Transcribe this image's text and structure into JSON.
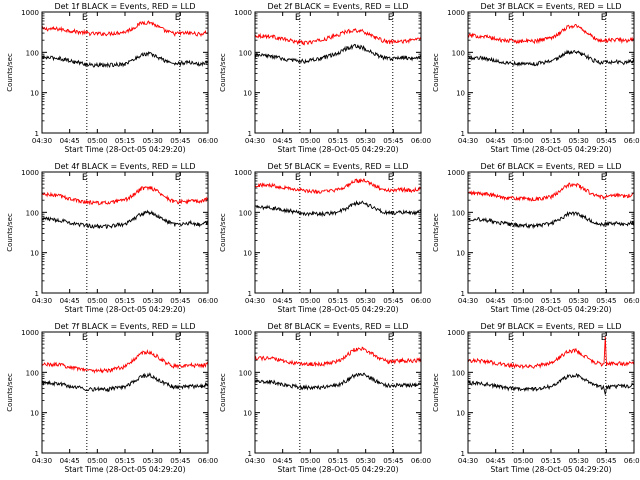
{
  "figure": {
    "background": "#ffffff",
    "axis_color": "#000000"
  },
  "chart_data": [
    {
      "type": "line",
      "title": "Det 1f BLACK = Events, RED = LLD",
      "xlabel": "Start Time (28-Oct-05 04:29:20)",
      "ylabel": "Counts/sec",
      "x_tick_labels": [
        "04:30",
        "04:45",
        "05:00",
        "05:15",
        "05:30",
        "05:45",
        "06:00"
      ],
      "y_tick_labels": [
        "1",
        "10",
        "100",
        "1000"
      ],
      "xlim": [
        0,
        100
      ],
      "ylim": [
        1,
        1000
      ],
      "y_scale": "log",
      "marker_lines_x": [
        27,
        83
      ],
      "annotation": "E",
      "series": [
        {
          "color": "#ff0000",
          "x": [
            0,
            10,
            20,
            30,
            40,
            50,
            55,
            60,
            65,
            70,
            75,
            80,
            85,
            90,
            95,
            100
          ],
          "values": [
            380,
            380,
            330,
            290,
            290,
            320,
            400,
            540,
            560,
            430,
            330,
            290,
            300,
            300,
            280,
            320
          ]
        },
        {
          "color": "#000000",
          "x": [
            0,
            10,
            20,
            30,
            40,
            50,
            55,
            60,
            65,
            70,
            75,
            80,
            85,
            90,
            95,
            100
          ],
          "values": [
            75,
            72,
            58,
            48,
            48,
            52,
            65,
            88,
            92,
            75,
            60,
            52,
            55,
            56,
            50,
            58
          ]
        }
      ]
    },
    {
      "type": "line",
      "title": "Det 2f BLACK = Events, RED = LLD",
      "xlabel": "Start Time (28-Oct-05 04:29:20)",
      "ylabel": "Counts/sec",
      "x_tick_labels": [
        "04:30",
        "04:45",
        "05:00",
        "05:15",
        "05:30",
        "05:45",
        "06:00"
      ],
      "y_tick_labels": [
        "1",
        "10",
        "100",
        "1000"
      ],
      "xlim": [
        0,
        100
      ],
      "ylim": [
        1,
        1000
      ],
      "y_scale": "log",
      "marker_lines_x": [
        27,
        83
      ],
      "annotation": "E",
      "series": [
        {
          "color": "#ff0000",
          "x": [
            0,
            10,
            20,
            30,
            40,
            50,
            55,
            60,
            65,
            70,
            75,
            80,
            85,
            90,
            95,
            100
          ],
          "values": [
            260,
            250,
            200,
            170,
            200,
            270,
            330,
            360,
            330,
            270,
            210,
            180,
            180,
            190,
            200,
            230
          ]
        },
        {
          "color": "#000000",
          "x": [
            0,
            10,
            20,
            30,
            40,
            50,
            55,
            60,
            65,
            70,
            75,
            80,
            85,
            90,
            95,
            100
          ],
          "values": [
            85,
            80,
            65,
            60,
            70,
            95,
            125,
            145,
            130,
            100,
            80,
            70,
            72,
            75,
            72,
            80
          ]
        }
      ]
    },
    {
      "type": "line",
      "title": "Det 3f BLACK = Events, RED = LLD",
      "xlabel": "Start Time (28-Oct-05 04:29:20)",
      "ylabel": "Counts/sec",
      "x_tick_labels": [
        "04:30",
        "04:45",
        "05:00",
        "05:15",
        "05:30",
        "05:45",
        "06:00"
      ],
      "y_tick_labels": [
        "1",
        "10",
        "100",
        "1000"
      ],
      "xlim": [
        0,
        100
      ],
      "ylim": [
        1,
        1000
      ],
      "y_scale": "log",
      "marker_lines_x": [
        27,
        83
      ],
      "annotation": "E",
      "series": [
        {
          "color": "#ff0000",
          "x": [
            0,
            10,
            20,
            30,
            40,
            50,
            55,
            60,
            65,
            70,
            75,
            80,
            85,
            90,
            95,
            100
          ],
          "values": [
            260,
            250,
            200,
            190,
            190,
            230,
            300,
            430,
            460,
            350,
            240,
            190,
            200,
            210,
            190,
            220
          ]
        },
        {
          "color": "#000000",
          "x": [
            0,
            10,
            20,
            30,
            40,
            50,
            55,
            60,
            65,
            70,
            75,
            80,
            85,
            90,
            95,
            100
          ],
          "values": [
            75,
            72,
            58,
            52,
            52,
            60,
            75,
            100,
            105,
            85,
            65,
            55,
            57,
            58,
            55,
            62
          ]
        }
      ]
    },
    {
      "type": "line",
      "title": "Det 4f BLACK = Events, RED = LLD",
      "xlabel": "Start Time (28-Oct-05 04:29:20)",
      "ylabel": "Counts/sec",
      "x_tick_labels": [
        "04:30",
        "04:45",
        "05:00",
        "05:15",
        "05:30",
        "05:45",
        "06:00"
      ],
      "y_tick_labels": [
        "1",
        "10",
        "100",
        "1000"
      ],
      "xlim": [
        0,
        100
      ],
      "ylim": [
        1,
        1000
      ],
      "y_scale": "log",
      "marker_lines_x": [
        27,
        83
      ],
      "annotation": "E",
      "series": [
        {
          "color": "#ff0000",
          "x": [
            0,
            10,
            20,
            30,
            40,
            50,
            55,
            60,
            65,
            70,
            75,
            80,
            85,
            90,
            95,
            100
          ],
          "values": [
            280,
            260,
            200,
            175,
            170,
            200,
            270,
            390,
            420,
            330,
            230,
            180,
            185,
            190,
            185,
            210
          ]
        },
        {
          "color": "#000000",
          "x": [
            0,
            10,
            20,
            30,
            40,
            50,
            55,
            60,
            65,
            70,
            75,
            80,
            85,
            90,
            95,
            100
          ],
          "values": [
            70,
            65,
            52,
            45,
            45,
            52,
            68,
            95,
            100,
            78,
            60,
            50,
            52,
            55,
            50,
            56
          ]
        }
      ]
    },
    {
      "type": "line",
      "title": "Det 5f BLACK = Events, RED = LLD",
      "xlabel": "Start Time (28-Oct-05 04:29:20)",
      "ylabel": "Counts/sec",
      "x_tick_labels": [
        "04:30",
        "04:45",
        "05:00",
        "05:15",
        "05:30",
        "05:45",
        "06:00"
      ],
      "y_tick_labels": [
        "1",
        "10",
        "100",
        "1000"
      ],
      "xlim": [
        0,
        100
      ],
      "ylim": [
        1,
        1000
      ],
      "y_scale": "log",
      "marker_lines_x": [
        27,
        83
      ],
      "annotation": "E",
      "series": [
        {
          "color": "#ff0000",
          "x": [
            0,
            10,
            20,
            30,
            40,
            50,
            55,
            60,
            65,
            70,
            75,
            80,
            85,
            90,
            95,
            100
          ],
          "values": [
            470,
            470,
            400,
            340,
            320,
            360,
            450,
            590,
            620,
            500,
            400,
            350,
            360,
            370,
            350,
            390
          ]
        },
        {
          "color": "#000000",
          "x": [
            0,
            10,
            20,
            30,
            40,
            50,
            55,
            60,
            65,
            70,
            75,
            80,
            85,
            90,
            95,
            100
          ],
          "values": [
            135,
            130,
            110,
            95,
            90,
            100,
            125,
            165,
            175,
            140,
            110,
            95,
            98,
            100,
            95,
            105
          ]
        }
      ]
    },
    {
      "type": "line",
      "title": "Det 6f BLACK = Events, RED = LLD",
      "xlabel": "Start Time (28-Oct-05 04:29:20)",
      "ylabel": "Counts/sec",
      "x_tick_labels": [
        "04:30",
        "04:45",
        "05:00",
        "05:15",
        "05:30",
        "05:45",
        "06:00"
      ],
      "y_tick_labels": [
        "1",
        "10",
        "100",
        "1000"
      ],
      "xlim": [
        0,
        100
      ],
      "ylim": [
        1,
        1000
      ],
      "y_scale": "log",
      "marker_lines_x": [
        27,
        83
      ],
      "annotation": "E",
      "series": [
        {
          "color": "#ff0000",
          "x": [
            0,
            10,
            20,
            30,
            40,
            50,
            55,
            60,
            65,
            70,
            75,
            80,
            85,
            90,
            95,
            100
          ],
          "values": [
            300,
            290,
            240,
            220,
            210,
            240,
            320,
            480,
            500,
            380,
            280,
            240,
            250,
            260,
            250,
            280
          ]
        },
        {
          "color": "#000000",
          "x": [
            0,
            10,
            20,
            30,
            40,
            50,
            55,
            60,
            65,
            70,
            75,
            80,
            85,
            90,
            95,
            100
          ],
          "values": [
            70,
            66,
            54,
            48,
            46,
            52,
            66,
            90,
            95,
            75,
            58,
            50,
            52,
            54,
            50,
            56
          ]
        }
      ]
    },
    {
      "type": "line",
      "title": "Det 7f BLACK = Events, RED = LLD",
      "xlabel": "Start Time (28-Oct-05 04:29:20)",
      "ylabel": "Counts/sec",
      "x_tick_labels": [
        "04:30",
        "04:45",
        "05:00",
        "05:15",
        "05:30",
        "05:45",
        "06:00"
      ],
      "y_tick_labels": [
        "1",
        "10",
        "100",
        "1000"
      ],
      "xlim": [
        0,
        100
      ],
      "ylim": [
        1,
        1000
      ],
      "y_scale": "log",
      "marker_lines_x": [
        27,
        83
      ],
      "annotation": "E",
      "series": [
        {
          "color": "#ff0000",
          "x": [
            0,
            10,
            20,
            30,
            40,
            50,
            55,
            60,
            65,
            70,
            75,
            80,
            85,
            90,
            95,
            100
          ],
          "values": [
            160,
            155,
            130,
            110,
            110,
            140,
            200,
            300,
            320,
            240,
            170,
            140,
            140,
            150,
            145,
            160
          ]
        },
        {
          "color": "#000000",
          "x": [
            0,
            10,
            20,
            30,
            40,
            50,
            55,
            60,
            65,
            70,
            75,
            80,
            85,
            90,
            95,
            100
          ],
          "values": [
            55,
            52,
            43,
            38,
            38,
            45,
            58,
            80,
            85,
            66,
            50,
            43,
            44,
            46,
            44,
            50
          ]
        }
      ]
    },
    {
      "type": "line",
      "title": "Det 8f BLACK = Events, RED = LLD",
      "xlabel": "Start Time (28-Oct-05 04:29:20)",
      "ylabel": "Counts/sec",
      "x_tick_labels": [
        "04:30",
        "04:45",
        "05:00",
        "05:15",
        "05:30",
        "05:45",
        "06:00"
      ],
      "y_tick_labels": [
        "1",
        "10",
        "100",
        "1000"
      ],
      "xlim": [
        0,
        100
      ],
      "ylim": [
        1,
        1000
      ],
      "y_scale": "log",
      "marker_lines_x": [
        27,
        83
      ],
      "annotation": "E",
      "series": [
        {
          "color": "#ff0000",
          "x": [
            0,
            10,
            20,
            30,
            40,
            50,
            55,
            60,
            65,
            70,
            75,
            80,
            85,
            90,
            95,
            100
          ],
          "values": [
            230,
            220,
            180,
            160,
            160,
            190,
            260,
            370,
            390,
            300,
            220,
            185,
            190,
            200,
            190,
            215
          ]
        },
        {
          "color": "#000000",
          "x": [
            0,
            10,
            20,
            30,
            40,
            50,
            55,
            60,
            65,
            70,
            75,
            80,
            85,
            90,
            95,
            100
          ],
          "values": [
            60,
            58,
            47,
            42,
            42,
            48,
            62,
            85,
            90,
            70,
            55,
            47,
            48,
            50,
            47,
            53
          ]
        }
      ]
    },
    {
      "type": "line",
      "title": "Det 9f BLACK = Events, RED = LLD",
      "xlabel": "Start Time (28-Oct-05 04:29:20)",
      "ylabel": "Counts/sec",
      "x_tick_labels": [
        "04:30",
        "04:45",
        "05:00",
        "05:15",
        "05:30",
        "05:45",
        "06:00"
      ],
      "y_tick_labels": [
        "1",
        "10",
        "100",
        "1000"
      ],
      "xlim": [
        0,
        100
      ],
      "ylim": [
        1,
        1000
      ],
      "y_scale": "log",
      "marker_lines_x": [
        27,
        83
      ],
      "annotation": "E",
      "series": [
        {
          "color": "#ff0000",
          "x": [
            0,
            10,
            20,
            30,
            40,
            50,
            55,
            60,
            65,
            70,
            75,
            80,
            82,
            82.7,
            83.4,
            84,
            88,
            92,
            96,
            100
          ],
          "values": [
            200,
            190,
            160,
            140,
            140,
            170,
            230,
            330,
            350,
            260,
            190,
            160,
            160,
            800,
            160,
            160,
            165,
            170,
            160,
            180
          ]
        },
        {
          "color": "#000000",
          "x": [
            0,
            10,
            20,
            30,
            40,
            50,
            55,
            60,
            65,
            70,
            75,
            80,
            82,
            82.7,
            83.4,
            84,
            88,
            92,
            96,
            100
          ],
          "values": [
            55,
            52,
            43,
            38,
            38,
            45,
            58,
            80,
            85,
            66,
            50,
            43,
            42,
            30,
            42,
            42,
            44,
            46,
            44,
            50
          ]
        }
      ]
    }
  ]
}
